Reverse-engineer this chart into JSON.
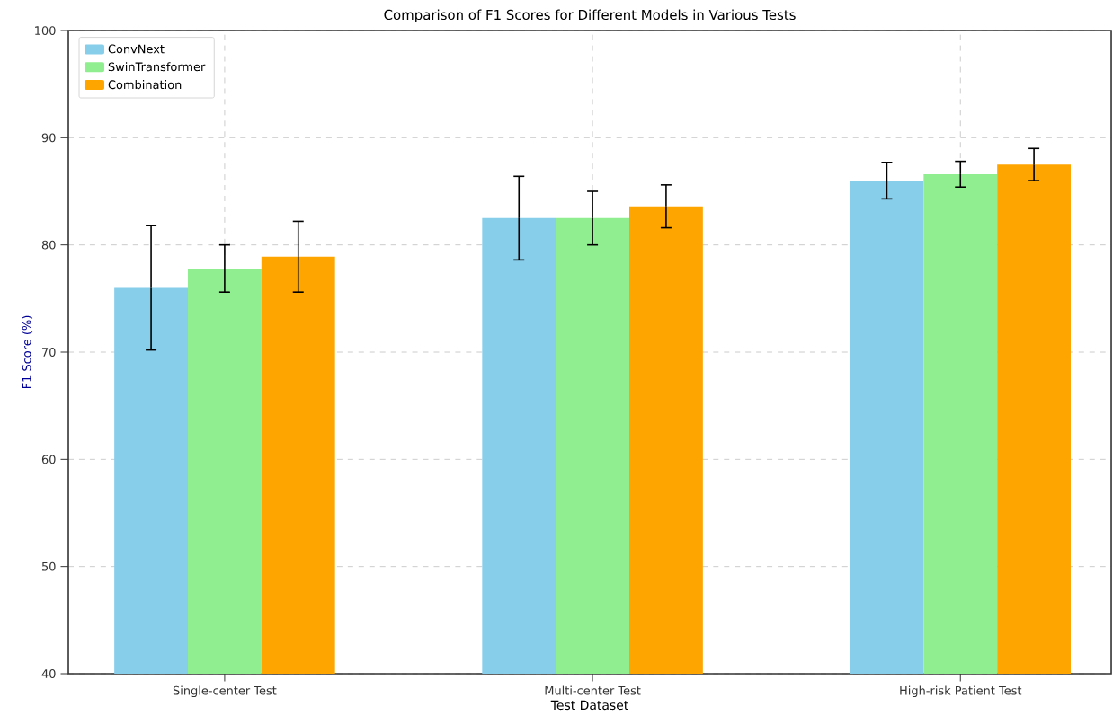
{
  "chart_data": {
    "type": "bar",
    "title": "Comparison of F1 Scores for Different Models in Various Tests",
    "xlabel": "Test Dataset",
    "ylabel": "F1 Score (%)",
    "categories": [
      "Single-center Test",
      "Multi-center Test",
      "High-risk Patient Test"
    ],
    "series": [
      {
        "name": "ConvNext",
        "color": "#87ceeb",
        "values": [
          76.0,
          82.5,
          86.0
        ],
        "errors": [
          5.8,
          3.9,
          1.7
        ]
      },
      {
        "name": "SwinTransformer",
        "color": "#90ee90",
        "values": [
          77.8,
          82.5,
          86.6
        ],
        "errors": [
          2.2,
          2.5,
          1.2
        ]
      },
      {
        "name": "Combination",
        "color": "#ffa500",
        "values": [
          78.9,
          83.6,
          87.5
        ],
        "errors": [
          3.3,
          2.0,
          1.5
        ]
      }
    ],
    "ylim": [
      40,
      100
    ],
    "yticks": [
      40,
      50,
      60,
      70,
      80,
      90,
      100
    ],
    "grid": true,
    "legend": "top left"
  }
}
